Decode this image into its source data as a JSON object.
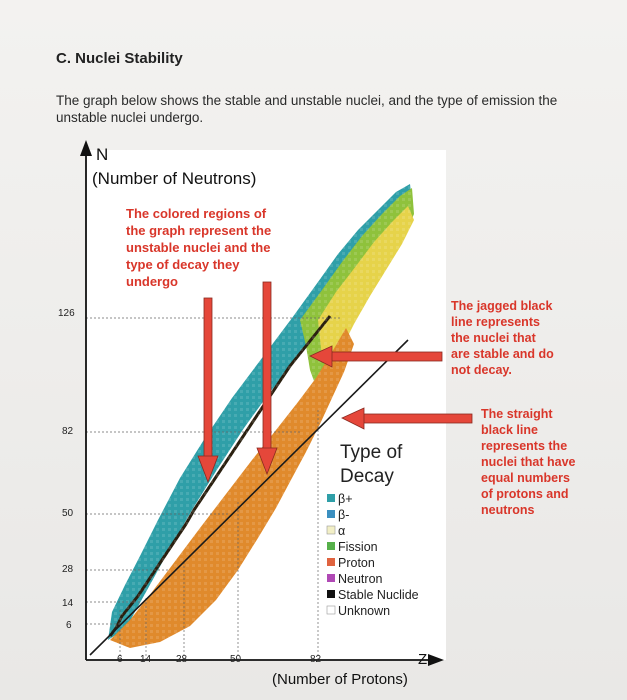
{
  "section_title": "C. Nuclei Stability",
  "intro_text": "The graph below shows the stable and unstable nuclei, and the type of emission the unstable nuclei undergo.",
  "chart_data": {
    "type": "scatter",
    "xlabel_symbol": "Z",
    "xlabel": "(Number of Protons)",
    "ylabel_symbol": "N",
    "ylabel": "(Number of Neutrons)",
    "x_ticks": [
      6,
      14,
      28,
      50,
      82
    ],
    "y_ticks": [
      6,
      14,
      28,
      50,
      82,
      126
    ],
    "xlim": [
      0,
      118
    ],
    "ylim": [
      0,
      178
    ],
    "grid": "dotted lines at magic numbers",
    "legend_title": "Type of Decay",
    "legend": [
      {
        "label": "β+",
        "color": "#2f9fa8"
      },
      {
        "label": "β-",
        "color": "#3b8fc0"
      },
      {
        "label": "α",
        "color": "#f2efc6"
      },
      {
        "label": "Fission",
        "color": "#56b04a"
      },
      {
        "label": "Proton",
        "color": "#e0633f"
      },
      {
        "label": "Neutron",
        "color": "#b049b5"
      },
      {
        "label": "Stable Nuclide",
        "color": "#111111"
      },
      {
        "label": "Unknown",
        "color": "#ffffff"
      }
    ],
    "annotations": [
      "The colored regions of the graph represent the unstable nuclei and the type of decay they undergo",
      "The jagged black line represents the nuclei that are stable and do not decay.",
      "The straight black line represents the nuclei that have equal numbers of protons and neutrons"
    ]
  },
  "colors": {
    "annotation_red": "#e04030",
    "arrow_red": "#e5473a",
    "beta_plus_teal": "#2f9fa8",
    "beta_minus_orange": "#e08a2c",
    "alpha_yellow": "#e6d34a"
  }
}
